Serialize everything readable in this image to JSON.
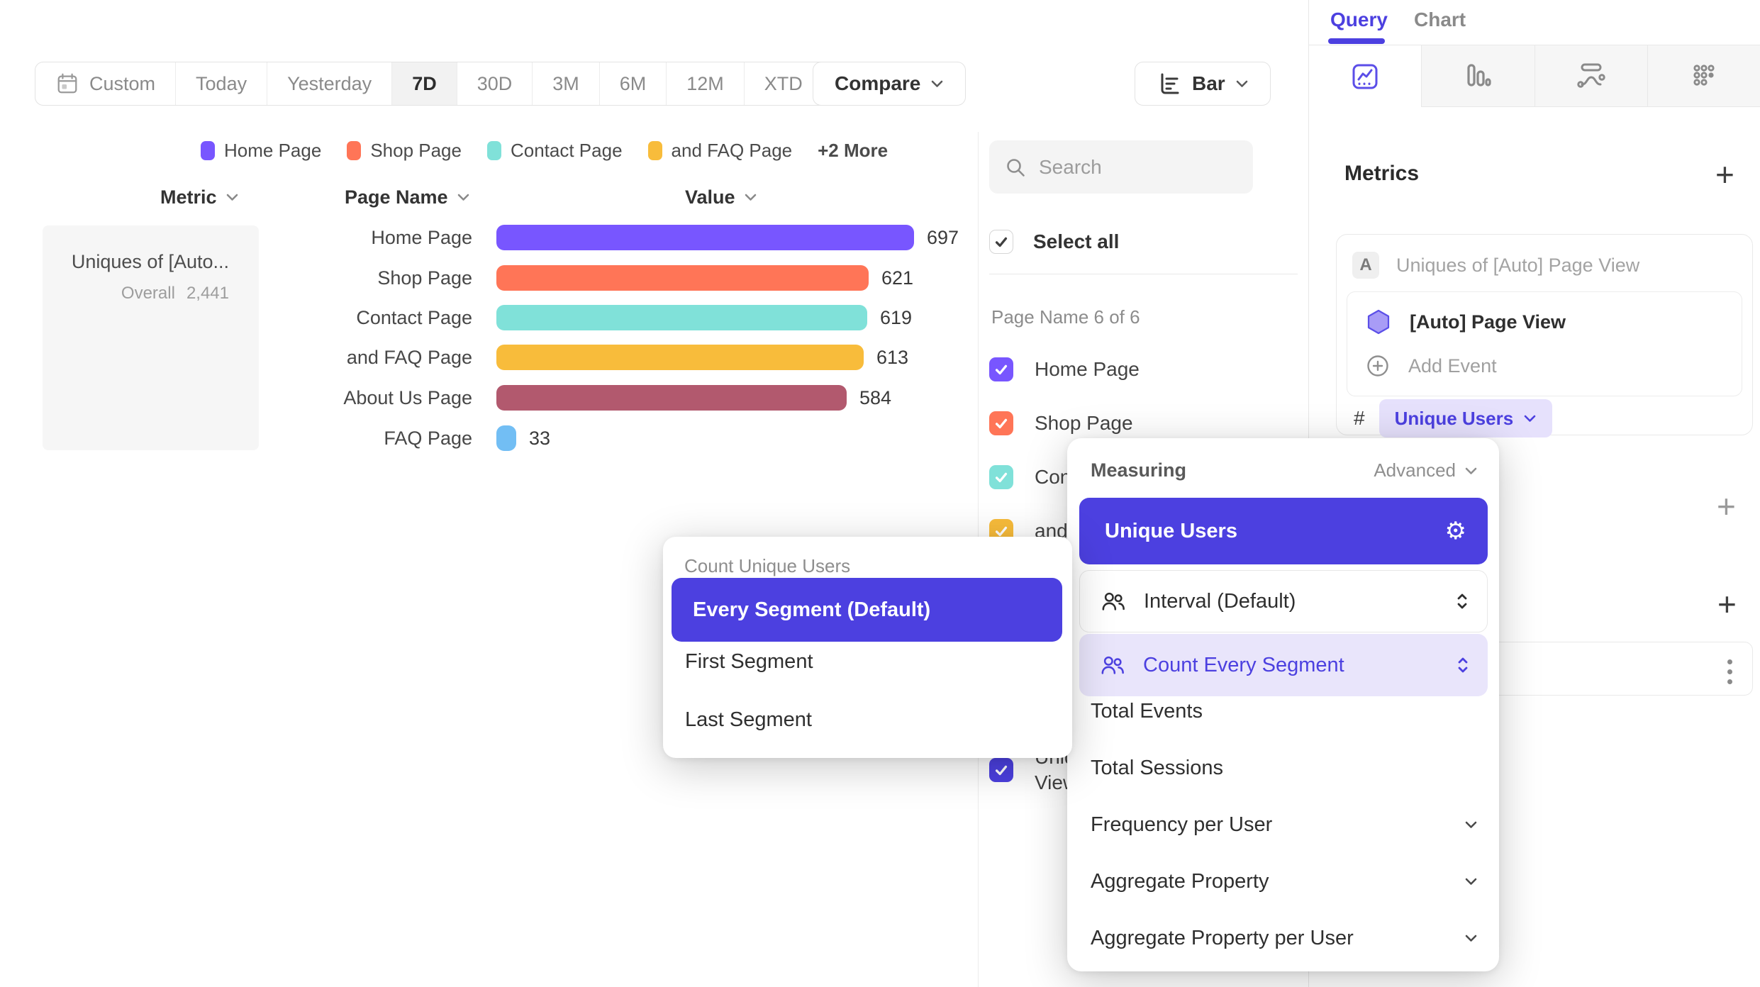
{
  "toolbar": {
    "date_ranges": [
      {
        "label": "Custom",
        "icon": "calendar"
      },
      {
        "label": "Today"
      },
      {
        "label": "Yesterday"
      },
      {
        "label": "7D",
        "active": true
      },
      {
        "label": "30D"
      },
      {
        "label": "3M"
      },
      {
        "label": "6M"
      },
      {
        "label": "12M"
      },
      {
        "label": "XTD",
        "chevron": true
      }
    ],
    "compare_label": "Compare",
    "chart_type_label": "Bar"
  },
  "legend": {
    "items": [
      {
        "label": "Home Page",
        "color": "#7856FF"
      },
      {
        "label": "Shop Page",
        "color": "#FF7557"
      },
      {
        "label": "Contact Page",
        "color": "#80E1D9"
      },
      {
        "label": "and FAQ Page",
        "color": "#F8BC3B"
      }
    ],
    "more_label": "+2 More"
  },
  "table": {
    "headers": {
      "metric": "Metric",
      "page_name": "Page Name",
      "value": "Value"
    },
    "metric": {
      "name": "Uniques of [Auto...",
      "overall_label": "Overall",
      "overall_value": "2,441"
    },
    "rows": [
      {
        "page": "Home Page",
        "value": "697",
        "color": "#7856FF"
      },
      {
        "page": "Shop Page",
        "value": "621",
        "color": "#FF7557"
      },
      {
        "page": "Contact Page",
        "value": "619",
        "color": "#80E1D9"
      },
      {
        "page": "and FAQ Page",
        "value": "613",
        "color": "#F8BC3B"
      },
      {
        "page": "About Us Page",
        "value": "584",
        "color": "#B2596E"
      },
      {
        "page": "FAQ Page",
        "value": "33",
        "color": "#72BEF4"
      }
    ]
  },
  "chart_data": {
    "type": "bar",
    "orientation": "horizontal",
    "title": "Uniques of [Auto] Page View",
    "categories": [
      "Home Page",
      "Shop Page",
      "Contact Page",
      "and FAQ Page",
      "About Us Page",
      "FAQ Page"
    ],
    "values": [
      697,
      621,
      619,
      613,
      584,
      33
    ],
    "overall_total": 2441,
    "xlabel": "Value",
    "ylabel": "Page Name",
    "legend_position": "top",
    "grid": false,
    "colors": [
      "#7856FF",
      "#FF7557",
      "#80E1D9",
      "#F8BC3B",
      "#B2596E",
      "#72BEF4"
    ]
  },
  "filter_panel": {
    "search_placeholder": "Search",
    "select_all_label": "Select all",
    "group_label": "Page Name 6 of 6",
    "items": [
      {
        "label": "Home Page",
        "color": "#7856FF",
        "checked": true
      },
      {
        "label": "Shop Page",
        "color": "#FF7557",
        "checked": true
      },
      {
        "label": "Contact Page",
        "color": "#80E1D9",
        "checked": true
      },
      {
        "label": "and FAQ Page",
        "color": "#F8BC3B",
        "checked": true
      }
    ],
    "metric_item": {
      "label": "Uniques of [Auto] Page View",
      "color": "#4C40E0",
      "checked": true
    }
  },
  "sidebar": {
    "tabs": [
      {
        "label": "Query",
        "active": true
      },
      {
        "label": "Chart",
        "active": false
      }
    ],
    "report_type_tabs": [
      "insights",
      "funnels",
      "flows",
      "retention"
    ],
    "active_report_type": "insights",
    "metrics_title": "Metrics",
    "metric_card": {
      "badge": "A",
      "title": "Uniques of [Auto] Page View",
      "event_name": "[Auto] Page View",
      "add_event_label": "Add Event",
      "hash_symbol": "#",
      "measurement_label": "Unique Users"
    }
  },
  "count_popup": {
    "title": "Count Unique Users",
    "options": [
      {
        "label": "Every Segment (Default)",
        "selected": true
      },
      {
        "label": "First Segment",
        "selected": false
      },
      {
        "label": "Last Segment",
        "selected": false
      }
    ]
  },
  "measuring_popup": {
    "title": "Measuring",
    "advanced_label": "Advanced",
    "selected_label": "Unique Users",
    "interval_label": "Interval (Default)",
    "count_mode_label": "Count Every Segment",
    "options": [
      {
        "label": "Total Events",
        "expandable": false
      },
      {
        "label": "Total Sessions",
        "expandable": false
      },
      {
        "label": "Frequency per User",
        "expandable": true
      },
      {
        "label": "Aggregate Property",
        "expandable": true
      },
      {
        "label": "Aggregate Property per User",
        "expandable": true
      }
    ]
  },
  "colors": {
    "accent_indigo": "#4C40E0",
    "lavender_bg": "#E9E5FB",
    "series_palette": [
      "#7856FF",
      "#FF7557",
      "#80E1D9",
      "#F8BC3B",
      "#B2596E",
      "#72BEF4"
    ]
  }
}
